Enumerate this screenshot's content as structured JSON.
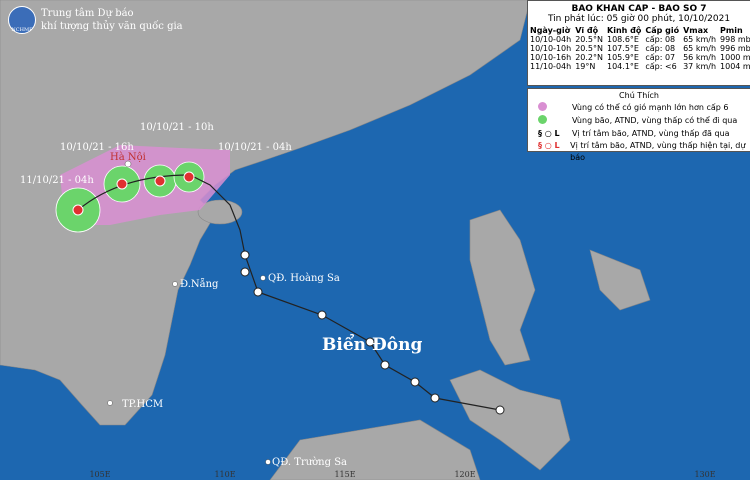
{
  "header": {
    "agency_line1": "Trung tâm Dự báo",
    "agency_line2": "khí tượng thủy văn quốc gia",
    "logo": "NCHMF"
  },
  "bulletin": {
    "title": "BAO KHAN CAP - BAO SO 7",
    "issued": "Tin phát lúc: 05 giờ 00 phút, 10/10/2021",
    "table": {
      "columns": [
        "Ngày-giờ",
        "Vĩ độ",
        "Kinh độ",
        "Cấp gió",
        "Vmax",
        "Pmin"
      ],
      "rows": [
        [
          "10/10-04h",
          "20.5°N",
          "108.6°E",
          "cấp: 08",
          "65 km/h",
          "998 mb"
        ],
        [
          "10/10-10h",
          "20.5°N",
          "107.5°E",
          "cấp: 08",
          "65 km/h",
          "996 mb"
        ],
        [
          "10/10-16h",
          "20.2°N",
          "105.9°E",
          "cấp: 07",
          "56 km/h",
          "1000 mb"
        ],
        [
          "11/10-04h",
          "19°N",
          "104.1°E",
          "cấp: <6",
          "37 km/h",
          "1004 mb"
        ]
      ]
    }
  },
  "legend": {
    "title": "Chú Thích",
    "items": [
      "Vùng có thể có gió mạnh lớn hơn cấp 6",
      "Vùng bão, ATND, vùng thấp có thể đi qua",
      "Vị trí tâm bão, ATND, vùng thấp đã qua",
      "Vị trí tâm bão, ATND, vùng thấp hiện tại, dự báo"
    ]
  },
  "map": {
    "track_labels": [
      "10/10/21 - 10h",
      "10/10/21 - 16h",
      "10/10/21 - 04h",
      "11/10/21 - 04h"
    ],
    "places": [
      "Hà Nội",
      "QĐ. Hoàng Sa",
      "Đ.Nẵng",
      "Biển Đông",
      "TP.HCM",
      "QĐ. Trường Sa"
    ],
    "longitudes": [
      "105E",
      "110E",
      "115E",
      "120E",
      "130E"
    ]
  }
}
